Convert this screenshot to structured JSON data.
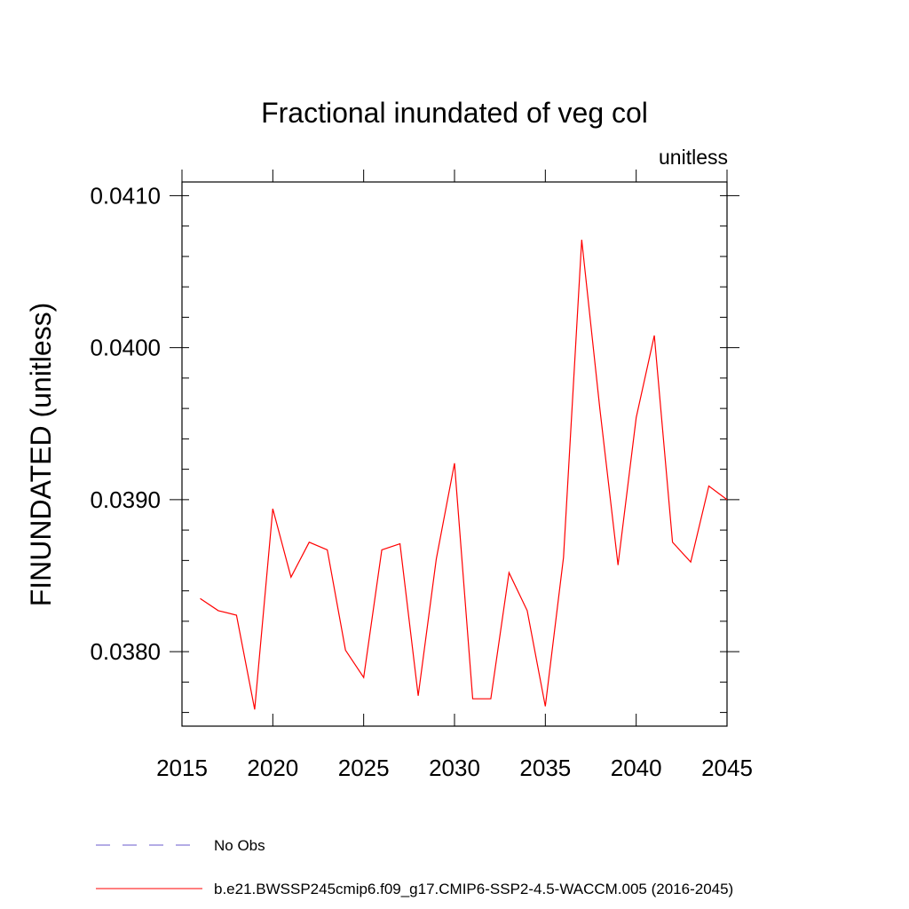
{
  "chart_data": {
    "type": "line",
    "title": "Fractional inundated of veg col",
    "units_label": "unitless",
    "ylabel": "FINUNDATED  (unitless)",
    "xlabel": "",
    "xlim": [
      2015,
      2045
    ],
    "ylim": [
      0.03751,
      0.04109
    ],
    "x_ticks": [
      2015,
      2020,
      2025,
      2030,
      2035,
      2040,
      2045
    ],
    "x_tick_labels": [
      "2015",
      "2020",
      "2025",
      "2030",
      "2035",
      "2040",
      "2045"
    ],
    "y_ticks": [
      0.038,
      0.039,
      0.04,
      0.041
    ],
    "y_tick_labels": [
      "0.0380",
      "0.0390",
      "0.0400",
      "0.0410"
    ],
    "y_minor_step": 0.0002,
    "grid": false,
    "x": [
      2016,
      2017,
      2018,
      2019,
      2020,
      2021,
      2022,
      2023,
      2024,
      2025,
      2026,
      2027,
      2028,
      2029,
      2030,
      2031,
      2032,
      2033,
      2034,
      2035,
      2036,
      2037,
      2038,
      2039,
      2040,
      2041,
      2042,
      2043,
      2044,
      2045
    ],
    "series": [
      {
        "name": "b.e21.BWSSP245cmip6.f09_g17.CMIP6-SSP2-4.5-WACCM.005 (2016-2045)",
        "color": "#ff0000",
        "dash": "solid",
        "values": [
          0.03835,
          0.03827,
          0.03824,
          0.03762,
          0.03894,
          0.03849,
          0.03872,
          0.03867,
          0.03801,
          0.03783,
          0.03867,
          0.03871,
          0.03771,
          0.03861,
          0.03924,
          0.03769,
          0.03769,
          0.03852,
          0.03827,
          0.03764,
          0.03862,
          0.04071,
          0.0396,
          0.03857,
          0.03954,
          0.04008,
          0.03872,
          0.03859,
          0.03909,
          0.039
        ]
      }
    ],
    "legend": {
      "placement": "bottom",
      "entries": [
        {
          "label": "No Obs",
          "color": "#6a5acd",
          "dash": "dashed"
        },
        {
          "label": "b.e21.BWSSP245cmip6.f09_g17.CMIP6-SSP2-4.5-WACCM.005 (2016-2045)",
          "color": "#ff0000",
          "dash": "solid"
        }
      ]
    }
  }
}
